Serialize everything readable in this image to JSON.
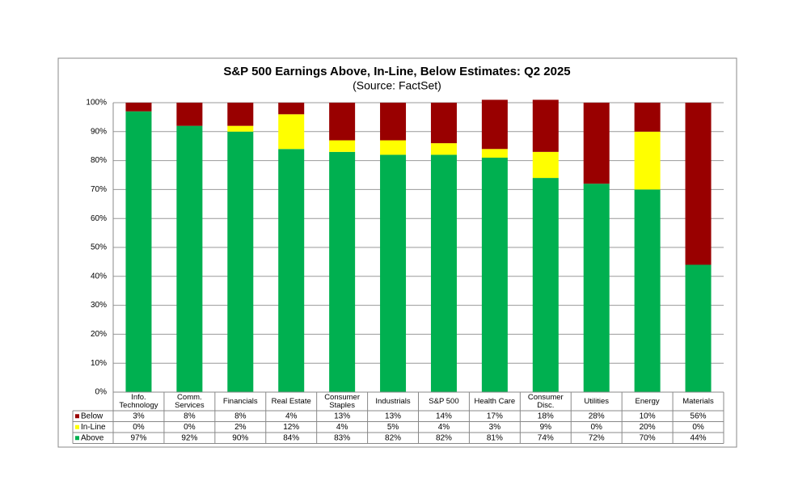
{
  "chart_data": {
    "type": "stacked_bar",
    "title": "S&P 500 Earnings Above, In-Line, Below Estimates: Q2 2025",
    "subtitle": "(Source: FactSet)",
    "categories": [
      "Info. Technology",
      "Comm. Services",
      "Financials",
      "Real Estate",
      "Consumer Staples",
      "Industrials",
      "S&P 500",
      "Health Care",
      "Consumer Disc.",
      "Utilities",
      "Energy",
      "Materials"
    ],
    "series": [
      {
        "name": "Below",
        "color": "#990000",
        "values": [
          3,
          8,
          8,
          4,
          13,
          13,
          14,
          17,
          18,
          28,
          10,
          56
        ],
        "value_labels": [
          "3%",
          "8%",
          "8%",
          "4%",
          "13%",
          "13%",
          "14%",
          "17%",
          "18%",
          "28%",
          "10%",
          "56%"
        ]
      },
      {
        "name": "In-Line",
        "color": "#ffff00",
        "values": [
          0,
          0,
          2,
          12,
          4,
          5,
          4,
          3,
          9,
          0,
          20,
          0
        ],
        "value_labels": [
          "0%",
          "0%",
          "2%",
          "12%",
          "4%",
          "5%",
          "4%",
          "3%",
          "9%",
          "0%",
          "20%",
          "0%"
        ]
      },
      {
        "name": "Above",
        "color": "#00b050",
        "values": [
          97,
          92,
          90,
          84,
          83,
          82,
          82,
          81,
          74,
          72,
          70,
          44
        ],
        "value_labels": [
          "97%",
          "92%",
          "90%",
          "84%",
          "83%",
          "82%",
          "82%",
          "81%",
          "74%",
          "72%",
          "70%",
          "44%"
        ]
      }
    ],
    "ylim": [
      0,
      100
    ],
    "yticks": [
      {
        "value": 0,
        "label": "0%"
      },
      {
        "value": 10,
        "label": "10%"
      },
      {
        "value": 20,
        "label": "20%"
      },
      {
        "value": 30,
        "label": "30%"
      },
      {
        "value": 40,
        "label": "40%"
      },
      {
        "value": 50,
        "label": "50%"
      },
      {
        "value": 60,
        "label": "60%"
      },
      {
        "value": 70,
        "label": "70%"
      },
      {
        "value": 80,
        "label": "80%"
      },
      {
        "value": 90,
        "label": "90%"
      },
      {
        "value": 100,
        "label": "100%"
      }
    ],
    "grid": true
  }
}
